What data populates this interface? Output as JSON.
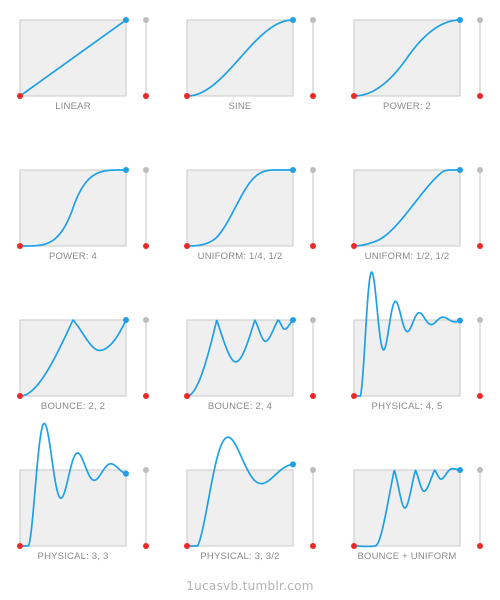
{
  "colors": {
    "curve": "#1ea0e6",
    "start_point": "#e82a2a",
    "box_fill": "#efefef",
    "box_stroke": "#c8c8c8",
    "slider_line": "#cfcfcf",
    "slider_top": "#bdbdbd",
    "caption": "#8a8a8a",
    "footer": "#b3b3b3"
  },
  "panels": [
    {
      "caption": "LINEAR",
      "curve": "linear"
    },
    {
      "caption": "SINE",
      "curve": "sine"
    },
    {
      "caption": "POWER: 2",
      "curve": "power2"
    },
    {
      "caption": "POWER: 4",
      "curve": "power4"
    },
    {
      "caption": "UNIFORM: 1/4, 1/2",
      "curve": "uniform_quarter_half"
    },
    {
      "caption": "UNIFORM: 1/2, 1/2",
      "curve": "uniform_half_half"
    },
    {
      "caption": "BOUNCE: 2, 2",
      "curve": "bounce_2_2"
    },
    {
      "caption": "BOUNCE: 2, 4",
      "curve": "bounce_2_4"
    },
    {
      "caption": "PHYSICAL: 4, 5",
      "curve": "physical_4_5"
    },
    {
      "caption": "PHYSICAL: 3, 3",
      "curve": "physical_3_3"
    },
    {
      "caption": "PHYSICAL: 3, 3/2",
      "curve": "physical_3_1_5"
    },
    {
      "caption": "BOUNCE + UNIFORM",
      "curve": "bounce_uniform"
    }
  ],
  "footer": {
    "text": "1ucasvb.tumblr.com"
  }
}
